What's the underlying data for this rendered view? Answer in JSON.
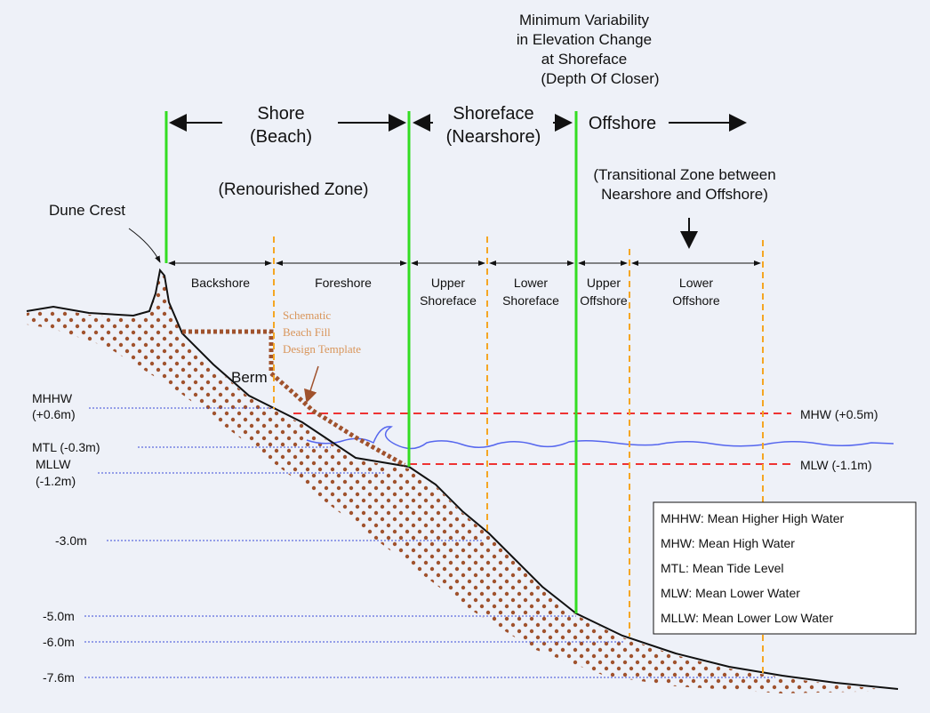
{
  "header": {
    "depth_of_closure": [
      "Minimum Variability",
      "in Elevation Change",
      "at Shoreface",
      "(Depth Of Closer)"
    ]
  },
  "zones": {
    "shore": [
      "Shore",
      "(Beach)"
    ],
    "shoreface": [
      "Shoreface",
      "(Nearshore)"
    ],
    "offshore": "Offshore",
    "renourished": "(Renourished Zone)",
    "transitional": [
      "(Transitional Zone between",
      "Nearshore and Offshore)"
    ]
  },
  "subzones": [
    [
      "Backshore"
    ],
    [
      "Foreshore"
    ],
    [
      "Upper",
      "Shoreface"
    ],
    [
      "Lower",
      "Shoreface"
    ],
    [
      "Upper",
      "Offshore"
    ],
    [
      "Lower",
      "Offshore"
    ]
  ],
  "features": {
    "dune_crest": "Dune Crest",
    "berm": "Berm",
    "template": [
      "Schematic",
      "Beach Fill",
      "Design Template"
    ]
  },
  "levels_left": {
    "mhhw": [
      "MHHW",
      "(+0.6m)"
    ],
    "mtl": "MTL (-0.3m)",
    "mllw": [
      "MLLW",
      "(-1.2m)"
    ],
    "d3": "-3.0m",
    "d5": "-5.0m",
    "d6": "-6.0m",
    "d76": "-7.6m"
  },
  "levels_right": {
    "mhw": "MHW (+0.5m)",
    "mlw": "MLW (-1.1m)"
  },
  "legend": [
    "MHHW: Mean Higher High Water",
    "MHW: Mean High Water",
    "MTL: Mean Tide Level",
    "MLW: Mean Lower Water",
    "MLLW: Mean Lower Low Water"
  ]
}
